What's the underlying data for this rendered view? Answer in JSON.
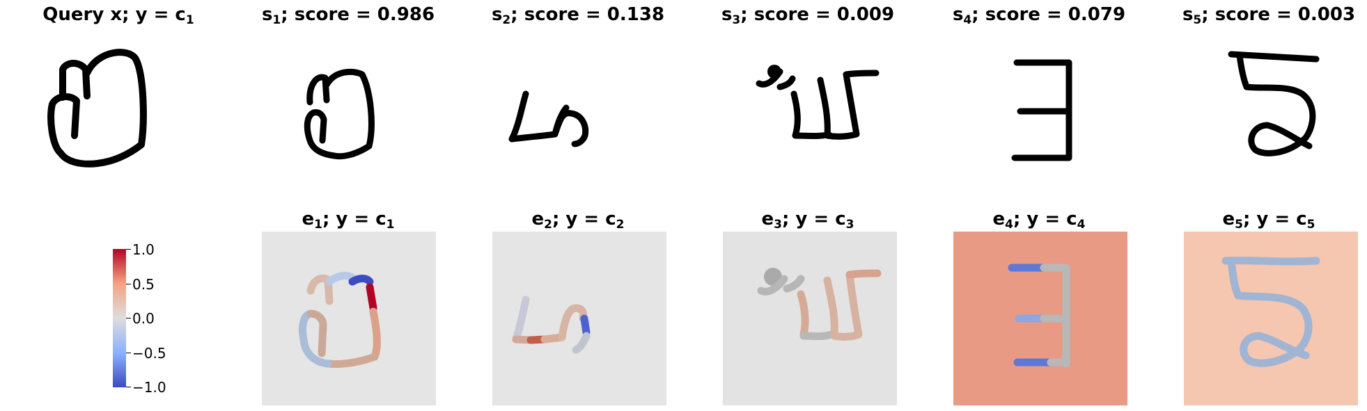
{
  "query": {
    "title_main": "Query x; y = c",
    "title_sub": "1"
  },
  "samples": [
    {
      "name": "s",
      "sub": "1",
      "score_text": "; score = 0.986",
      "score": 0.986
    },
    {
      "name": "s",
      "sub": "2",
      "score_text": "; score = 0.138",
      "score": 0.138
    },
    {
      "name": "s",
      "sub": "3",
      "score_text": "; score = 0.009",
      "score": 0.009
    },
    {
      "name": "s",
      "sub": "4",
      "score_text": "; score = 0.079",
      "score": 0.079
    },
    {
      "name": "s",
      "sub": "5",
      "score_text": "; score = 0.003",
      "score": 0.003
    }
  ],
  "explanations": [
    {
      "name": "e",
      "sub": "1",
      "label": "; y = c",
      "class_sub": "1",
      "background": "#e5e5e5"
    },
    {
      "name": "e",
      "sub": "2",
      "label": "; y = c",
      "class_sub": "2",
      "background": "#e5e5e5"
    },
    {
      "name": "e",
      "sub": "3",
      "label": "; y = c",
      "class_sub": "3",
      "background": "#e4e3e3"
    },
    {
      "name": "e",
      "sub": "4",
      "label": "; y = c",
      "class_sub": "4",
      "background": "#e89a84"
    },
    {
      "name": "e",
      "sub": "5",
      "label": "; y = c",
      "class_sub": "5",
      "background": "#f5c6b0"
    }
  ],
  "colorbar": {
    "ticks": [
      "1.0",
      "0.5",
      "0.0",
      "−0.5",
      "−1.0"
    ],
    "colors": {
      "min": "#3b4cc0",
      "mid": "#dddddd",
      "max": "#b40426"
    }
  }
}
